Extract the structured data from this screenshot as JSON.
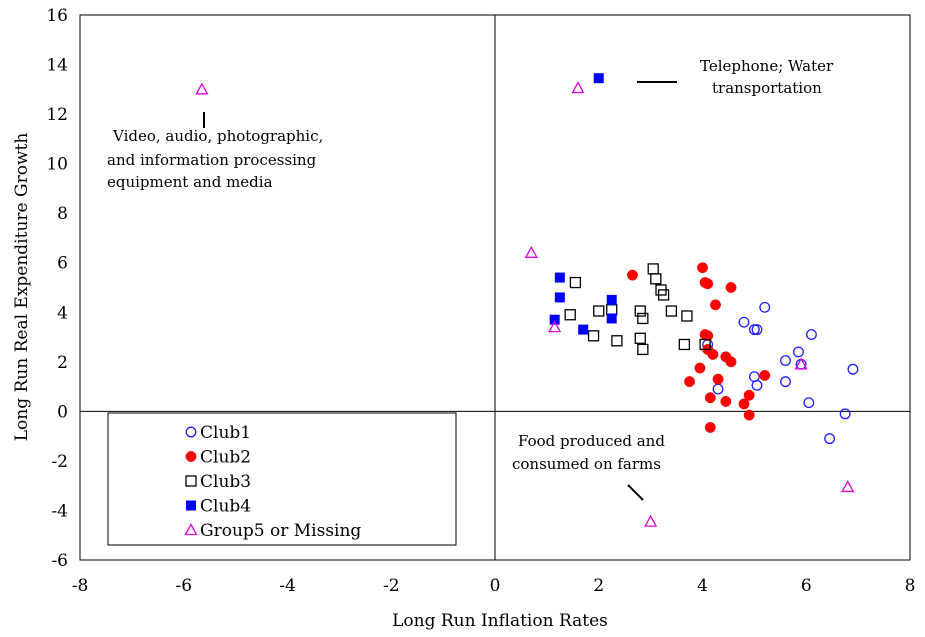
{
  "chart_data": {
    "type": "scatter",
    "xlabel": "Long Run Inflation Rates",
    "ylabel": "Long Run Real Expenditure Growth",
    "xlim": [
      -8,
      8
    ],
    "ylim": [
      -6,
      16
    ],
    "xticks": [
      -8,
      -6,
      -4,
      -2,
      0,
      2,
      4,
      6,
      8
    ],
    "yticks": [
      -6,
      -4,
      -2,
      0,
      2,
      4,
      6,
      8,
      10,
      12,
      14,
      16
    ],
    "quadrant_lines": {
      "x": 0,
      "y": 0
    },
    "grid": false,
    "legend_placement": "bottom-left",
    "series": [
      {
        "name": "Club1",
        "marker": "circle-open",
        "color": "#1f1fff",
        "points": [
          [
            4.8,
            3.6
          ],
          [
            5.0,
            3.3
          ],
          [
            5.05,
            3.3
          ],
          [
            5.2,
            4.2
          ],
          [
            6.1,
            3.1
          ],
          [
            5.85,
            2.4
          ],
          [
            5.6,
            2.05
          ],
          [
            5.9,
            1.9
          ],
          [
            6.9,
            1.7
          ],
          [
            5.0,
            1.4
          ],
          [
            5.05,
            1.05
          ],
          [
            5.6,
            1.2
          ],
          [
            4.3,
            0.9
          ],
          [
            6.05,
            0.35
          ],
          [
            6.75,
            -0.1
          ],
          [
            6.45,
            -1.1
          ],
          [
            4.1,
            2.7
          ]
        ]
      },
      {
        "name": "Club2",
        "marker": "circle-filled",
        "color": "#ff0000",
        "points": [
          [
            2.65,
            5.5
          ],
          [
            4.0,
            5.8
          ],
          [
            4.05,
            5.2
          ],
          [
            4.1,
            5.15
          ],
          [
            4.55,
            5.0
          ],
          [
            4.25,
            4.3
          ],
          [
            4.05,
            3.1
          ],
          [
            4.1,
            3.05
          ],
          [
            4.1,
            2.5
          ],
          [
            4.2,
            2.3
          ],
          [
            4.45,
            2.2
          ],
          [
            4.55,
            2.0
          ],
          [
            3.95,
            1.75
          ],
          [
            5.2,
            1.45
          ],
          [
            3.75,
            1.2
          ],
          [
            4.3,
            1.3
          ],
          [
            4.9,
            0.65
          ],
          [
            4.15,
            0.55
          ],
          [
            4.45,
            0.4
          ],
          [
            4.8,
            0.3
          ],
          [
            4.9,
            -0.15
          ],
          [
            4.15,
            -0.65
          ]
        ]
      },
      {
        "name": "Club3",
        "marker": "square-open",
        "color": "#000000",
        "points": [
          [
            3.05,
            5.75
          ],
          [
            3.1,
            5.35
          ],
          [
            3.2,
            4.9
          ],
          [
            3.25,
            4.7
          ],
          [
            1.55,
            5.2
          ],
          [
            2.0,
            4.05
          ],
          [
            2.25,
            4.1
          ],
          [
            2.8,
            4.05
          ],
          [
            3.4,
            4.05
          ],
          [
            3.7,
            3.85
          ],
          [
            1.45,
            3.9
          ],
          [
            2.85,
            3.75
          ],
          [
            1.9,
            3.05
          ],
          [
            2.35,
            2.85
          ],
          [
            2.8,
            2.95
          ],
          [
            3.65,
            2.7
          ],
          [
            4.05,
            2.7
          ],
          [
            2.85,
            2.5
          ]
        ]
      },
      {
        "name": "Club4",
        "marker": "square-filled",
        "color": "#0000ff",
        "points": [
          [
            2.0,
            13.45
          ],
          [
            1.25,
            5.4
          ],
          [
            1.25,
            4.6
          ],
          [
            2.25,
            4.5
          ],
          [
            1.15,
            3.7
          ],
          [
            2.25,
            3.75
          ],
          [
            1.7,
            3.3
          ]
        ]
      },
      {
        "name": "Group5 or Missing",
        "marker": "triangle-open",
        "color": "#e000e0",
        "points": [
          [
            -5.65,
            13.0
          ],
          [
            1.6,
            13.05
          ],
          [
            0.7,
            6.4
          ],
          [
            1.15,
            3.4
          ],
          [
            5.9,
            1.9
          ],
          [
            6.8,
            -3.05
          ],
          [
            3.0,
            -4.45
          ]
        ]
      }
    ],
    "annotations": [
      {
        "id": "video",
        "lines": [
          "Video, audio, photographic,",
          "and information processing",
          "equipment and media"
        ]
      },
      {
        "id": "telephone",
        "lines": [
          "Telephone; Water",
          "transportation"
        ]
      },
      {
        "id": "food",
        "lines": [
          "Food produced and",
          "consumed on farms"
        ]
      }
    ]
  }
}
